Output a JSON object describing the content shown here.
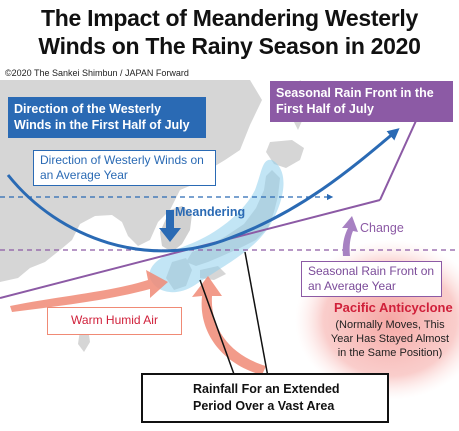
{
  "title": {
    "line1": "The Impact of Meandering Westerly",
    "line2": "Winds on The Rainy Season in 2020"
  },
  "credit": "©2020 The Sankei Shimbun / JAPAN Forward",
  "labels": {
    "westerly_july": "Direction of the Westerly Winds in the First Half of July",
    "westerly_average": "Direction of Westerly Winds on an Average Year",
    "front_july": "Seasonal Rain Front in the First Half of July",
    "front_average": "Seasonal Rain Front on an Average Year",
    "meandering": "Meandering",
    "change": "Change",
    "pacific_title": "Pacific Anticyclone",
    "pacific_note": "(Normally Moves, This Year Has Stayed Almost in the Same Position)",
    "warm_air": "Warm Humid Air",
    "rainfall": "Rainfall For an Extended Period Over a Vast Area"
  },
  "icons": {
    "rain_cloud": "rain-cloud-icon"
  },
  "colors": {
    "land": "#d6d6d6",
    "sea": "#ffffff",
    "westerly_blue": "#2a6ab4",
    "front_purple": "#8c5aa5",
    "anticyclone_red": "#f5a3a0",
    "warm_air_salmon": "#f08a75",
    "rain_glow": "#8fd0ec"
  }
}
